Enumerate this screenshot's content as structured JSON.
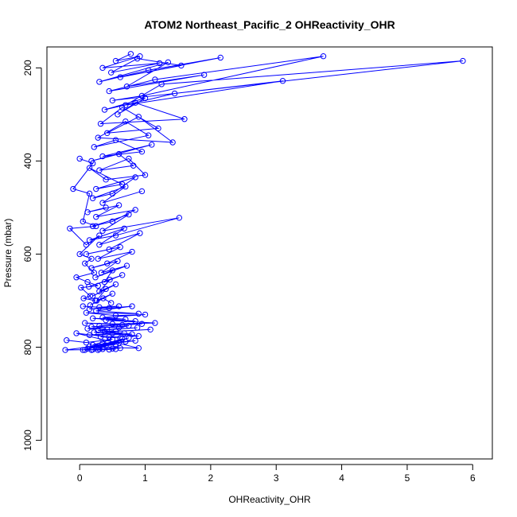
{
  "chart_data": {
    "type": "line",
    "title": "ATOM2 Northeast_Pacific_2 OHReactivity_OHR",
    "xlabel": "OHReactivity_OHR",
    "ylabel": "Pressure (mbar)",
    "xlim": [
      -0.5,
      6.3
    ],
    "ylim": [
      1040,
      155
    ],
    "y_inverted": true,
    "x_ticks": [
      0,
      1,
      2,
      3,
      4,
      5,
      6
    ],
    "y_ticks": [
      200,
      400,
      600,
      800,
      1000
    ],
    "marker": "open-circle",
    "grid": false,
    "legend": "none",
    "color": "#0000ff",
    "series": [
      {
        "x": [
          0.78,
          0.55,
          0.92,
          0.35,
          1.22,
          0.48,
          0.88,
          1.55,
          0.62,
          2.15,
          1.05,
          0.3,
          1.35,
          0.72,
          1.9,
          0.45,
          1.15,
          3.72,
          0.95,
          0.5,
          5.85,
          1.25,
          0.7,
          3.1,
          1.45,
          0.38,
          1.0,
          0.58,
          0.85,
          1.6,
          0.32,
          0.65,
          1.2,
          0.42,
          0.9,
          1.42,
          0.28,
          0.7,
          1.05,
          0.22,
          0.55,
          0.95,
          0.35,
          1.1,
          0.18,
          0.6,
          0.82,
          0.3,
          0.75,
          1.0,
          0.4,
          0.15,
          0.65,
          0.25,
          0.85,
          0.5,
          0.2,
          0.7,
          0.35,
          0.95
        ],
        "y": [
          170,
          185,
          175,
          200,
          190,
          210,
          180,
          195,
          220,
          178,
          205,
          230,
          188,
          240,
          215,
          250,
          225,
          175,
          260,
          270,
          185,
          235,
          280,
          228,
          255,
          290,
          265,
          300,
          275,
          310,
          320,
          285,
          330,
          340,
          305,
          360,
          350,
          315,
          345,
          370,
          355,
          380,
          390,
          365,
          400,
          385,
          410,
          420,
          395,
          430,
          440,
          415,
          450,
          460,
          435,
          470,
          480,
          455,
          490,
          465
        ]
      },
      {
        "x": [
          0.4,
          0.12,
          0.6,
          0.25,
          0.85,
          0.5,
          0.2,
          0.75,
          0.35,
          1.52,
          0.55,
          0.15,
          0.68,
          0.3,
          0.92,
          0.45,
          0.1,
          0.62,
          0.28,
          0.8,
          0.42,
          0.18,
          0.58,
          0.33,
          0.72,
          0.24,
          0.5,
          0.38,
          0.65,
          0.14,
          0.46,
          0.3,
          0.55,
          0.2,
          0.4,
          0.26,
          0.5,
          0.16,
          0.36,
          0.48
        ],
        "y": [
          500,
          510,
          495,
          520,
          505,
          530,
          540,
          515,
          550,
          522,
          560,
          570,
          545,
          580,
          555,
          590,
          600,
          585,
          610,
          595,
          620,
          630,
          615,
          640,
          625,
          650,
          635,
          660,
          645,
          670,
          655,
          680,
          665,
          690,
          675,
          700,
          685,
          710,
          695,
          705
        ]
      },
      {
        "x": [
          0.05,
          0.3,
          0.6,
          0.15,
          0.45,
          0.8,
          0.25,
          0.9,
          0.1,
          0.55,
          1.0,
          0.35,
          0.7,
          0.2,
          0.85,
          0.4,
          1.15,
          0.5,
          0.08,
          0.65,
          0.3,
          0.95,
          0.18,
          0.6,
          0.75,
          0.12,
          0.42,
          0.88,
          0.28,
          0.55,
          1.08,
          0.22,
          0.68,
          0.38,
          0.8,
          0.15,
          0.5,
          0.9,
          0.32,
          0.62
        ],
        "y": [
          712,
          714,
          712,
          718,
          716,
          712,
          722,
          728,
          726,
          732,
          730,
          736,
          740,
          738,
          744,
          742,
          748,
          750,
          748,
          752,
          754,
          750,
          756,
          758,
          754,
          760,
          762,
          758,
          764,
          766,
          762,
          768,
          770,
          766,
          772,
          774,
          770,
          776,
          778,
          780
        ]
      },
      {
        "x": [
          -0.2,
          0.1,
          0.5,
          0.2,
          0.7,
          0.35,
          0.85,
          0.15,
          0.55,
          0.25,
          0.9,
          -0.05,
          0.45,
          0.3,
          0.65,
          0.05,
          0.4,
          0.75,
          0.12,
          0.6,
          -0.22,
          0.2,
          0.5,
          0.08,
          0.35,
          0.62,
          0.18,
          0.45,
          0.28,
          0.55
        ],
        "y": [
          785,
          790,
          783,
          795,
          788,
          792,
          786,
          798,
          794,
          800,
          802,
          770,
          778,
          804,
          782,
          806,
          796,
          780,
          803,
          791,
          806,
          805,
          803,
          806,
          804,
          802,
          806,
          805,
          806,
          804
        ]
      },
      {
        "x": [
          0.0,
          0.2,
          -0.1,
          0.15,
          0.05,
          0.25,
          -0.15,
          0.1,
          0.3,
          0.0,
          0.18,
          0.08,
          0.22,
          -0.05,
          0.12,
          0.28,
          0.02,
          0.16,
          0.06,
          0.24
        ],
        "y": [
          395,
          405,
          460,
          470,
          530,
          540,
          545,
          580,
          560,
          600,
          610,
          620,
          640,
          650,
          660,
          668,
          672,
          690,
          695,
          700
        ]
      }
    ]
  }
}
